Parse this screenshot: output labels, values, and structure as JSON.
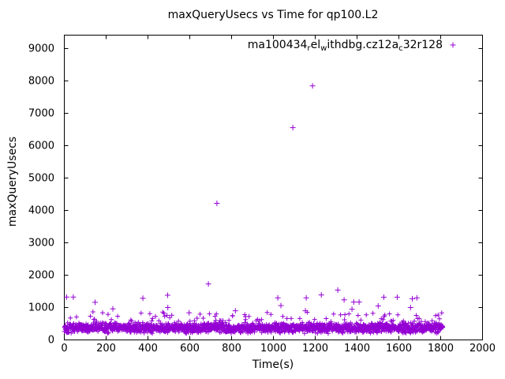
{
  "chart_data": {
    "type": "scatter",
    "title": "maxQueryUsecs vs Time for qp100.L2",
    "xlabel": "Time(s)",
    "ylabel": "maxQueryUsecs",
    "xlim": [
      0,
      2000
    ],
    "ylim": [
      0,
      9415
    ],
    "xticks": [
      0,
      200,
      400,
      600,
      800,
      1000,
      1200,
      1400,
      1600,
      1800,
      2000
    ],
    "yticks": [
      0,
      1000,
      2000,
      3000,
      4000,
      5000,
      6000,
      7000,
      8000,
      9000
    ],
    "grid": false,
    "background_color": "#ffffff",
    "axis_color": "#000000",
    "legend": {
      "position": "top-right-inside",
      "marker": "plus",
      "label_raw": "ma100434_rel_withdbg.cz12a_c32r128",
      "label_segments": [
        {
          "text": "ma100434"
        },
        {
          "text": "r",
          "sub": true
        },
        {
          "text": "el"
        },
        {
          "text": "w",
          "sub": true
        },
        {
          "text": "ithdbg.cz12a"
        },
        {
          "text": "c",
          "sub": true
        },
        {
          "text": "32r128"
        }
      ]
    },
    "series": [
      {
        "name": "ma100434_rel_withdbg.cz12a_c32r128",
        "color": "#9400d3",
        "marker": "plus",
        "dense_band": {
          "description": "approx one sample per second from t=0s to t=1810s; maxQueryUsecs mostly 200-560 with sparse fringe up to ~870",
          "t_start": 0,
          "t_end": 1810,
          "count": 1811,
          "v_min": 195,
          "v_typ_max": 560,
          "fringe_prob": 0.05,
          "fringe_max": 870,
          "seed": 1337
        },
        "outliers": [
          [
            11,
            1325
          ],
          [
            43,
            1325
          ],
          [
            147,
            1160
          ],
          [
            232,
            960
          ],
          [
            376,
            1285
          ],
          [
            494,
            1380
          ],
          [
            495,
            1000
          ],
          [
            597,
            840
          ],
          [
            689,
            1730
          ],
          [
            730,
            4220
          ],
          [
            818,
            900
          ],
          [
            1021,
            1300
          ],
          [
            1036,
            1060
          ],
          [
            1093,
            6560
          ],
          [
            1153,
            900
          ],
          [
            1157,
            1300
          ],
          [
            1187,
            7850
          ],
          [
            1229,
            1390
          ],
          [
            1308,
            1540
          ],
          [
            1338,
            1240
          ],
          [
            1376,
            950
          ],
          [
            1384,
            1170
          ],
          [
            1410,
            1170
          ],
          [
            1501,
            1050
          ],
          [
            1528,
            1320
          ],
          [
            1592,
            1320
          ],
          [
            1656,
            1000
          ],
          [
            1664,
            1270
          ],
          [
            1686,
            1300
          ]
        ]
      }
    ]
  }
}
